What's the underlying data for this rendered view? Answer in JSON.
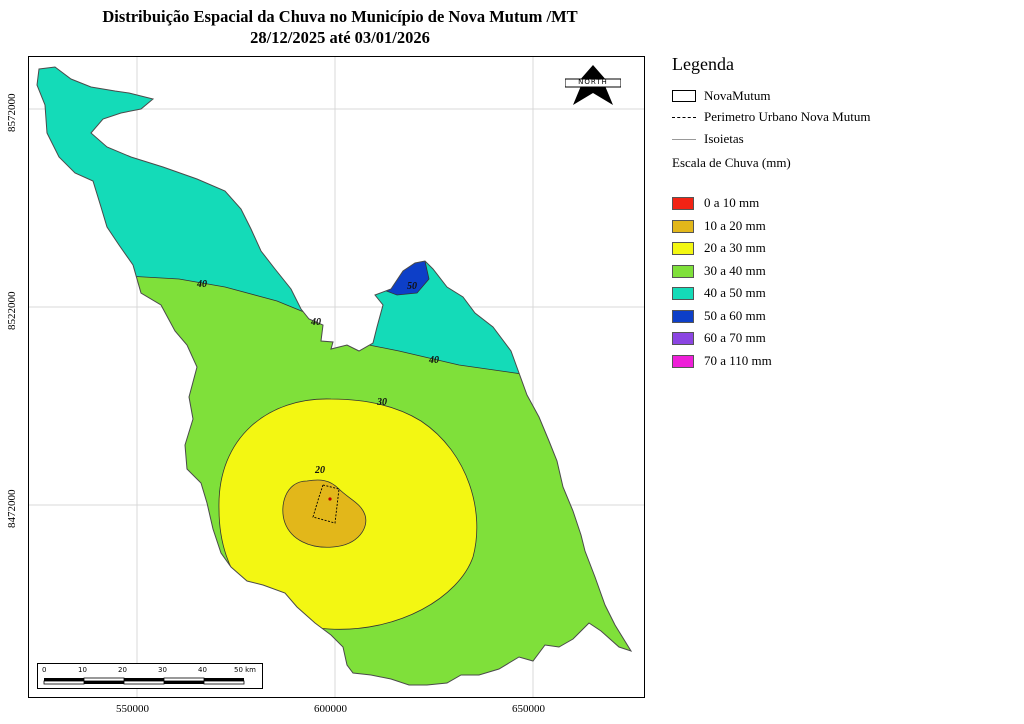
{
  "title": {
    "line1": "Distribuição Espacial da Chuva no Município de Nova Mutum /MT",
    "line2": "28/12/2025 até 03/01/2026"
  },
  "map": {
    "x_ticks": [
      "550000",
      "600000",
      "650000"
    ],
    "y_ticks": [
      "8572000",
      "8522000",
      "8472000"
    ],
    "isoline_labels": [
      "40",
      "40",
      "40",
      "30",
      "20",
      "50"
    ],
    "north_arrow_label": "NORTH",
    "scalebar": {
      "labels": [
        "0",
        "10",
        "20",
        "30",
        "40",
        "50 km"
      ]
    }
  },
  "legend": {
    "title": "Legenda",
    "layers": [
      {
        "label": "NovaMutum",
        "symbol": "polygon-outline"
      },
      {
        "label": "Perimetro Urbano Nova Mutum",
        "symbol": "dashed-line"
      },
      {
        "label": "Isoietas",
        "symbol": "gray-line"
      }
    ],
    "scale_heading": "Escala de Chuva (mm)",
    "classes": [
      {
        "label": "0 a 10 mm",
        "color": "#f22314"
      },
      {
        "label": "10 a 20 mm",
        "color": "#e2b71a"
      },
      {
        "label": "20 a 30 mm",
        "color": "#f3f712"
      },
      {
        "label": "30 a 40 mm",
        "color": "#7fe03a"
      },
      {
        "label": "40 a 50 mm",
        "color": "#14dbb8"
      },
      {
        "label": "50 a 60 mm",
        "color": "#0d3fc8"
      },
      {
        "label": "60 a 70 mm",
        "color": "#8b45e2"
      },
      {
        "label": "70 a 110 mm",
        "color": "#ee1fd8"
      }
    ]
  }
}
